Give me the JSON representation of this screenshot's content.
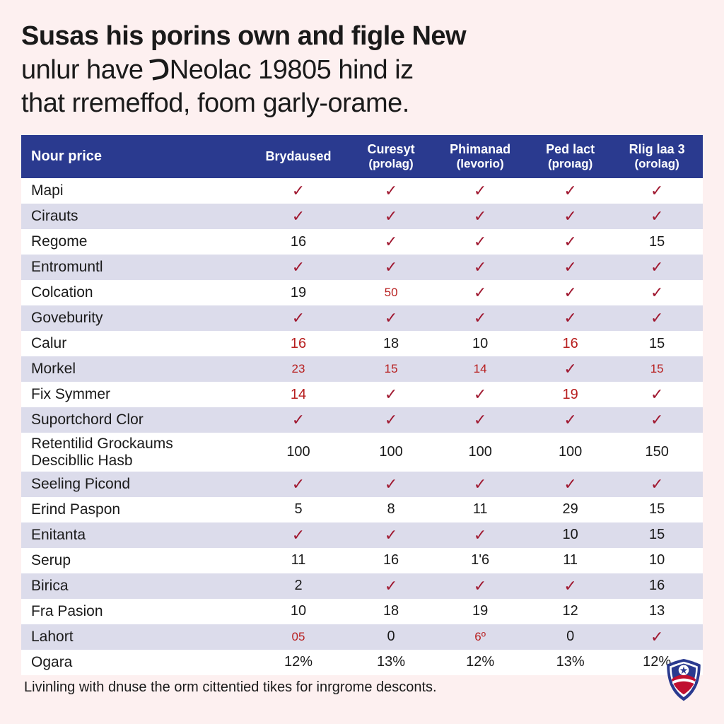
{
  "title": {
    "line1_bold": "Susas his porins own and figle New",
    "line2": "unlur have ",
    "line2_after_icon": "Neolac 19805 hind iz",
    "line3": "that rremeffod, foom garly-orame."
  },
  "table": {
    "header_bg": "#2a3a8f",
    "header_fg": "#ffffff",
    "row_even_bg": "#dcdceb",
    "row_odd_bg": "#ffffff",
    "check_color": "#a01830",
    "red_text_color": "#b82020",
    "columns": [
      {
        "label": "Nour price",
        "sub": ""
      },
      {
        "label": "Brydaused",
        "sub": ""
      },
      {
        "label": "Curesyt",
        "sub": "(prolag)"
      },
      {
        "label": "Phimanad",
        "sub": "(levorio)"
      },
      {
        "label": "Ped lact",
        "sub": "(proıag)"
      },
      {
        "label": "Rlig laa 3",
        "sub": "(orolag)"
      }
    ],
    "rows": [
      {
        "label": "Mapi",
        "cells": [
          {
            "v": "✓",
            "check": true
          },
          {
            "v": "✓",
            "check": true
          },
          {
            "v": "✓",
            "check": true
          },
          {
            "v": "✓",
            "check": true
          },
          {
            "v": "✓",
            "check": true
          }
        ]
      },
      {
        "label": "Cirauts",
        "cells": [
          {
            "v": "✓",
            "check": true
          },
          {
            "v": "✓",
            "check": true
          },
          {
            "v": "✓",
            "check": true
          },
          {
            "v": "✓",
            "check": true
          },
          {
            "v": "✓",
            "check": true
          }
        ]
      },
      {
        "label": "Regome",
        "cells": [
          {
            "v": "16"
          },
          {
            "v": "✓",
            "check": true
          },
          {
            "v": "✓",
            "check": true
          },
          {
            "v": "✓",
            "check": true
          },
          {
            "v": "15"
          }
        ]
      },
      {
        "label": "Entromuntl",
        "cells": [
          {
            "v": "✓",
            "check": true
          },
          {
            "v": "✓",
            "check": true
          },
          {
            "v": "✓",
            "check": true
          },
          {
            "v": "✓",
            "check": true
          },
          {
            "v": "✓",
            "check": true
          }
        ]
      },
      {
        "label": "Colcation",
        "cells": [
          {
            "v": "19"
          },
          {
            "v": "50",
            "red": true,
            "small": true
          },
          {
            "v": "✓",
            "check": true
          },
          {
            "v": "✓",
            "check": true
          },
          {
            "v": "✓",
            "check": true
          }
        ]
      },
      {
        "label": "Goveburity",
        "cells": [
          {
            "v": "✓",
            "check": true
          },
          {
            "v": "✓",
            "check": true
          },
          {
            "v": "✓",
            "check": true
          },
          {
            "v": "✓",
            "check": true
          },
          {
            "v": "✓",
            "check": true
          }
        ]
      },
      {
        "label": "Calur",
        "cells": [
          {
            "v": "16",
            "red": true
          },
          {
            "v": "18"
          },
          {
            "v": "10"
          },
          {
            "v": "16",
            "red": true
          },
          {
            "v": "15"
          }
        ]
      },
      {
        "label": "Morkel",
        "cells": [
          {
            "v": "23",
            "red": true,
            "small": true
          },
          {
            "v": "15",
            "red": true,
            "small": true
          },
          {
            "v": "14",
            "red": true,
            "small": true
          },
          {
            "v": "✓",
            "check": true
          },
          {
            "v": "15",
            "red": true,
            "small": true
          }
        ]
      },
      {
        "label": "Fix Symmer",
        "cells": [
          {
            "v": "14",
            "red": true
          },
          {
            "v": "✓",
            "check": true
          },
          {
            "v": "✓",
            "check": true
          },
          {
            "v": "19",
            "red": true
          },
          {
            "v": "✓",
            "check": true
          }
        ]
      },
      {
        "label": "Suportchord Clor",
        "cells": [
          {
            "v": "✓",
            "check": true
          },
          {
            "v": "✓",
            "check": true
          },
          {
            "v": "✓",
            "check": true
          },
          {
            "v": "✓",
            "check": true
          },
          {
            "v": "✓",
            "check": true
          }
        ]
      },
      {
        "label": "Retentilid Grockaums\nDescibllic Hasb",
        "twoline": true,
        "cells": [
          {
            "v": "100"
          },
          {
            "v": "100"
          },
          {
            "v": "100"
          },
          {
            "v": "100"
          },
          {
            "v": "150"
          }
        ]
      },
      {
        "label": "Seeling Picond",
        "cells": [
          {
            "v": "✓",
            "check": true
          },
          {
            "v": "✓",
            "check": true
          },
          {
            "v": "✓",
            "check": true
          },
          {
            "v": "✓",
            "check": true
          },
          {
            "v": "✓",
            "check": true
          }
        ]
      },
      {
        "label": "Erind Paspon",
        "cells": [
          {
            "v": "5"
          },
          {
            "v": "8"
          },
          {
            "v": "11"
          },
          {
            "v": "29"
          },
          {
            "v": "15"
          }
        ]
      },
      {
        "label": "Enitanta",
        "cells": [
          {
            "v": "✓",
            "check": true
          },
          {
            "v": "✓",
            "check": true
          },
          {
            "v": "✓",
            "check": true
          },
          {
            "v": "10"
          },
          {
            "v": "15"
          }
        ]
      },
      {
        "label": "Serup",
        "cells": [
          {
            "v": "11"
          },
          {
            "v": "16"
          },
          {
            "v": "1'6"
          },
          {
            "v": "11"
          },
          {
            "v": "10"
          }
        ]
      },
      {
        "label": "Birica",
        "cells": [
          {
            "v": "2"
          },
          {
            "v": "✓",
            "check": true
          },
          {
            "v": "✓",
            "check": true
          },
          {
            "v": "✓",
            "check": true
          },
          {
            "v": "16"
          }
        ]
      },
      {
        "label": "Fra Pasion",
        "cells": [
          {
            "v": "10"
          },
          {
            "v": "18"
          },
          {
            "v": "19"
          },
          {
            "v": "12"
          },
          {
            "v": "13"
          }
        ]
      },
      {
        "label": "Lahort",
        "cells": [
          {
            "v": "05",
            "red": true,
            "small": true
          },
          {
            "v": "0"
          },
          {
            "v": "6º",
            "red": true,
            "small": true
          },
          {
            "v": "0"
          },
          {
            "v": "✓",
            "check": true
          }
        ]
      },
      {
        "label": "Ogara",
        "cells": [
          {
            "v": "12%"
          },
          {
            "v": "13%"
          },
          {
            "v": "12%"
          },
          {
            "v": "13%"
          },
          {
            "v": "12%"
          }
        ]
      }
    ]
  },
  "footnote": "Livinling with dnuse the orm cittentied tikes for inrgrome desconts.",
  "badge": {
    "outer_color": "#2a3a8f",
    "ring_color": "#ffffff",
    "stripe_color": "#c01030",
    "star_color": "#ffffff"
  }
}
